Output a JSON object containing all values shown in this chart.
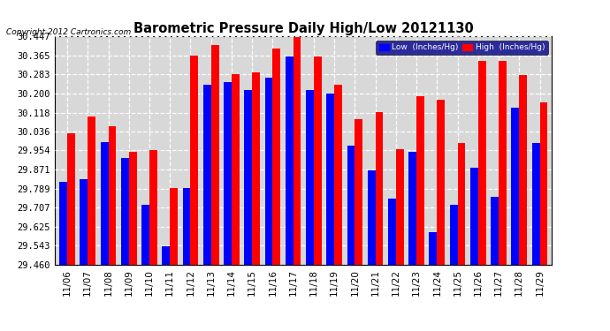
{
  "title": "Barometric Pressure Daily High/Low 20121130",
  "copyright": "Copyright 2012 Cartronics.com",
  "dates": [
    "11/06",
    "11/07",
    "11/08",
    "11/09",
    "11/10",
    "11/11",
    "11/12",
    "11/13",
    "11/14",
    "11/15",
    "11/16",
    "11/17",
    "11/18",
    "11/19",
    "11/20",
    "11/21",
    "11/22",
    "11/23",
    "11/24",
    "11/25",
    "11/26",
    "11/27",
    "11/28",
    "11/29"
  ],
  "low_values": [
    29.82,
    29.83,
    29.99,
    29.92,
    29.72,
    29.54,
    29.79,
    30.24,
    30.25,
    30.215,
    30.27,
    30.36,
    30.215,
    30.2,
    29.975,
    29.87,
    29.745,
    29.95,
    29.6,
    29.72,
    29.88,
    29.755,
    30.14,
    29.985
  ],
  "high_values": [
    30.03,
    30.1,
    30.06,
    29.95,
    29.955,
    29.79,
    30.365,
    30.41,
    30.285,
    30.29,
    30.395,
    30.445,
    30.36,
    30.24,
    30.09,
    30.12,
    29.96,
    30.19,
    30.175,
    29.985,
    30.34,
    30.34,
    30.28,
    30.16
  ],
  "ylim": [
    29.46,
    30.447
  ],
  "yticks": [
    29.46,
    29.543,
    29.625,
    29.707,
    29.789,
    29.871,
    29.954,
    30.036,
    30.118,
    30.2,
    30.283,
    30.365,
    30.447
  ],
  "low_color": "#0000ff",
  "high_color": "#ff0000",
  "bg_color": "#ffffff",
  "plot_bg_color": "#d8d8d8",
  "legend_low_label": "Low  (Inches/Hg)",
  "legend_high_label": "High  (Inches/Hg)",
  "bar_width": 0.38
}
